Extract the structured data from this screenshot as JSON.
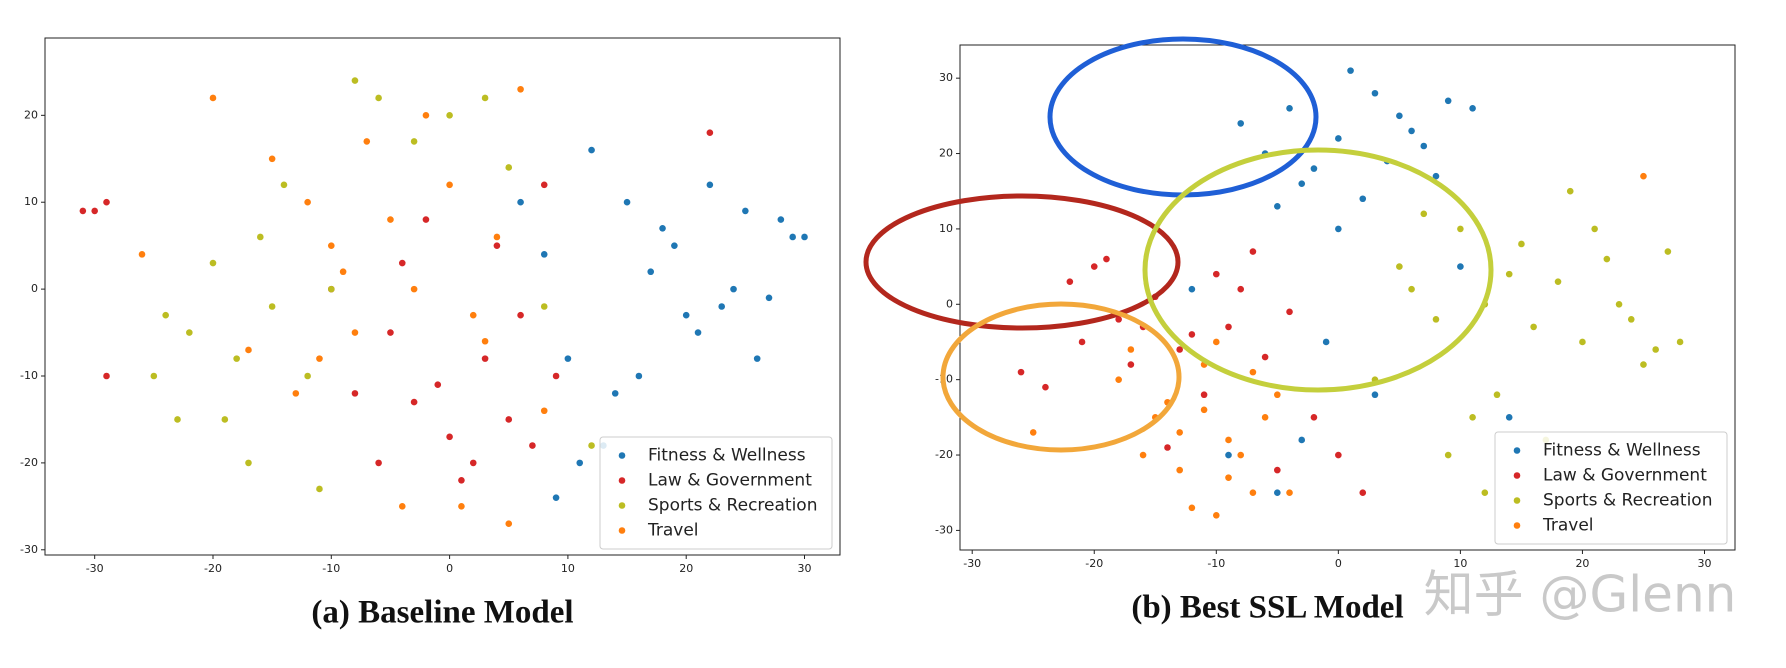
{
  "chart_data": [
    {
      "type": "scatter",
      "title": "(a) Baseline Model",
      "xlim": [
        -34.2,
        33
      ],
      "ylim": [
        -30.6,
        28.9
      ],
      "xticks": [
        -30,
        -20,
        -10,
        0,
        10,
        20,
        30
      ],
      "yticks": [
        -30,
        -20,
        -10,
        0,
        10,
        20
      ],
      "legend": "lower right",
      "series": [
        {
          "name": "Fitness & Wellness",
          "color": "#1f77b4",
          "x": [
            12,
            15,
            18,
            20,
            22,
            25,
            28,
            29,
            10,
            14,
            17,
            21,
            24,
            8,
            13,
            16,
            19,
            23,
            27,
            11,
            26,
            6,
            9,
            30
          ],
          "values": [
            16,
            10,
            7,
            -3,
            12,
            9,
            8,
            6,
            -8,
            -12,
            2,
            -5,
            0,
            4,
            -18,
            -10,
            5,
            -2,
            -1,
            -20,
            -8,
            10,
            -24,
            6
          ]
        },
        {
          "name": "Law & Government",
          "color": "#d62728",
          "x": [
            -30,
            -29,
            -31,
            -3,
            0,
            2,
            5,
            -5,
            7,
            3,
            -1,
            6,
            4,
            -8,
            1,
            9,
            -2,
            8,
            -6,
            -10,
            -4,
            22,
            -29
          ],
          "values": [
            9,
            10,
            9,
            -13,
            -17,
            -20,
            -15,
            -5,
            -18,
            -8,
            -11,
            -3,
            5,
            -12,
            -22,
            -10,
            8,
            12,
            -20,
            0,
            3,
            18,
            -10
          ]
        },
        {
          "name": "Sports & Recreation",
          "color": "#bcbd22",
          "x": [
            -22,
            -18,
            -15,
            -12,
            -20,
            -25,
            -17,
            -10,
            -8,
            -14,
            -6,
            0,
            3,
            -3,
            8,
            -11,
            -19,
            -23,
            5,
            -16,
            12,
            -24
          ],
          "values": [
            -5,
            -8,
            -2,
            -10,
            3,
            -10,
            -20,
            0,
            24,
            12,
            22,
            20,
            22,
            17,
            -2,
            -23,
            -15,
            -15,
            14,
            6,
            -18,
            -3
          ]
        },
        {
          "name": "Travel",
          "color": "#ff7f0e",
          "x": [
            -15,
            -12,
            -10,
            -8,
            -5,
            -3,
            0,
            2,
            4,
            -7,
            -11,
            -13,
            -2,
            1,
            5,
            6,
            -20,
            -26,
            -17,
            -9,
            8,
            -4,
            3
          ],
          "values": [
            15,
            10,
            5,
            -5,
            8,
            0,
            12,
            -3,
            6,
            17,
            -8,
            -12,
            20,
            -25,
            -27,
            23,
            22,
            4,
            -7,
            2,
            -14,
            -25,
            -6
          ]
        }
      ]
    },
    {
      "type": "scatter",
      "title": "(b) Best SSL Model",
      "xlim": [
        -31,
        32.5
      ],
      "ylim": [
        -32.6,
        34.4
      ],
      "xticks": [
        -30,
        -20,
        -10,
        0,
        10,
        20,
        30
      ],
      "yticks": [
        -30,
        -20,
        -10,
        0,
        10,
        20,
        30
      ],
      "legend": "lower right",
      "series": [
        {
          "name": "Fitness & Wellness",
          "color": "#1f77b4",
          "x": [
            -8,
            -6,
            -4,
            -2,
            0,
            1,
            3,
            5,
            7,
            9,
            11,
            -3,
            2,
            4,
            6,
            8,
            -5,
            0,
            -1,
            3,
            10,
            -9,
            -12,
            14,
            -5,
            -3
          ],
          "values": [
            24,
            20,
            26,
            18,
            22,
            31,
            28,
            25,
            21,
            27,
            26,
            16,
            14,
            19,
            23,
            17,
            13,
            10,
            -5,
            -12,
            5,
            -20,
            2,
            -15,
            -25,
            -18
          ]
        },
        {
          "name": "Law & Government",
          "color": "#d62728",
          "x": [
            -26,
            -22,
            -20,
            -18,
            -15,
            -12,
            -10,
            -8,
            -6,
            -4,
            -21,
            -17,
            -13,
            -9,
            -19,
            -24,
            -14,
            -7,
            -11,
            -5,
            -2,
            0,
            2,
            -16
          ],
          "values": [
            -9,
            3,
            5,
            -2,
            1,
            -4,
            4,
            2,
            -7,
            -1,
            -5,
            -8,
            -6,
            -3,
            6,
            -11,
            -19,
            7,
            -12,
            -22,
            -15,
            -20,
            -25,
            -3
          ]
        },
        {
          "name": "Sports & Recreation",
          "color": "#bcbd22",
          "x": [
            5,
            8,
            10,
            12,
            15,
            18,
            20,
            22,
            25,
            27,
            3,
            7,
            13,
            16,
            19,
            23,
            26,
            11,
            14,
            17,
            21,
            24,
            9,
            6,
            28,
            12
          ],
          "values": [
            5,
            -2,
            10,
            0,
            8,
            3,
            -5,
            6,
            -8,
            7,
            -10,
            12,
            -12,
            -3,
            15,
            0,
            -6,
            -15,
            4,
            -18,
            10,
            -2,
            -20,
            2,
            -5,
            -25
          ]
        },
        {
          "name": "Travel",
          "color": "#ff7f0e",
          "x": [
            -18,
            -15,
            -13,
            -11,
            -9,
            -7,
            -5,
            -12,
            -10,
            -8,
            -14,
            -6,
            -16,
            -4,
            -11,
            -9,
            -7,
            -13,
            -17,
            -10,
            25,
            -25
          ],
          "values": [
            -10,
            -15,
            -22,
            -8,
            -18,
            -25,
            -12,
            -27,
            -5,
            -20,
            -13,
            -15,
            -20,
            -25,
            -14,
            -23,
            -9,
            -17,
            -6,
            -28,
            17,
            -17
          ]
        }
      ]
    }
  ],
  "watermark": "知乎 @Glenn"
}
